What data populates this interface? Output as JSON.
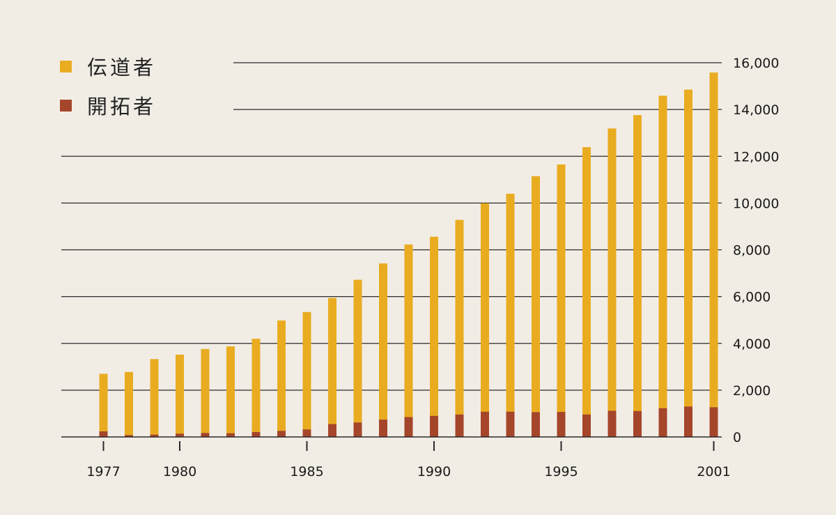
{
  "chart_data": {
    "type": "bar",
    "stacked": true,
    "x": [
      1977,
      1978,
      1979,
      1980,
      1981,
      1982,
      1983,
      1984,
      1985,
      1986,
      1987,
      1988,
      1989,
      1990,
      1991,
      1992,
      1993,
      1994,
      1995,
      1996,
      1997,
      1998,
      1999,
      2000,
      2001
    ],
    "x_tick_labels": [
      "1977",
      "1980",
      "1985",
      "1990",
      "1995",
      "2001"
    ],
    "series": [
      {
        "name": "伝道者",
        "color": "#e9ac21",
        "values": [
          2700,
          2780,
          3330,
          3520,
          3760,
          3870,
          4200,
          4980,
          5340,
          5940,
          6720,
          7420,
          8230,
          8560,
          9280,
          9990,
          10400,
          11150,
          11650,
          12390,
          13190,
          13760,
          14590,
          14850,
          15580
        ]
      },
      {
        "name": "開拓者",
        "color": "#a5462b",
        "values": [
          240,
          80,
          100,
          140,
          170,
          160,
          210,
          260,
          320,
          550,
          620,
          740,
          850,
          900,
          960,
          1080,
          1080,
          1060,
          1070,
          960,
          1120,
          1110,
          1230,
          1300,
          1270
        ]
      }
    ],
    "ylim": [
      0,
      16000
    ],
    "y_ticks": [
      "0",
      "2,000",
      "4,000",
      "6,000",
      "8,000",
      "10,000",
      "12,000",
      "14,000",
      "16,000"
    ],
    "y_axis_side": "right",
    "grid": true,
    "legend_placement": "top-left",
    "title": "",
    "xlabel": "",
    "ylabel": ""
  },
  "legend": {
    "items": [
      {
        "label": "伝道者",
        "color": "#e9ac21",
        "icon": "square-swatch"
      },
      {
        "label": "開拓者",
        "color": "#a5462b",
        "icon": "square-swatch"
      }
    ]
  }
}
